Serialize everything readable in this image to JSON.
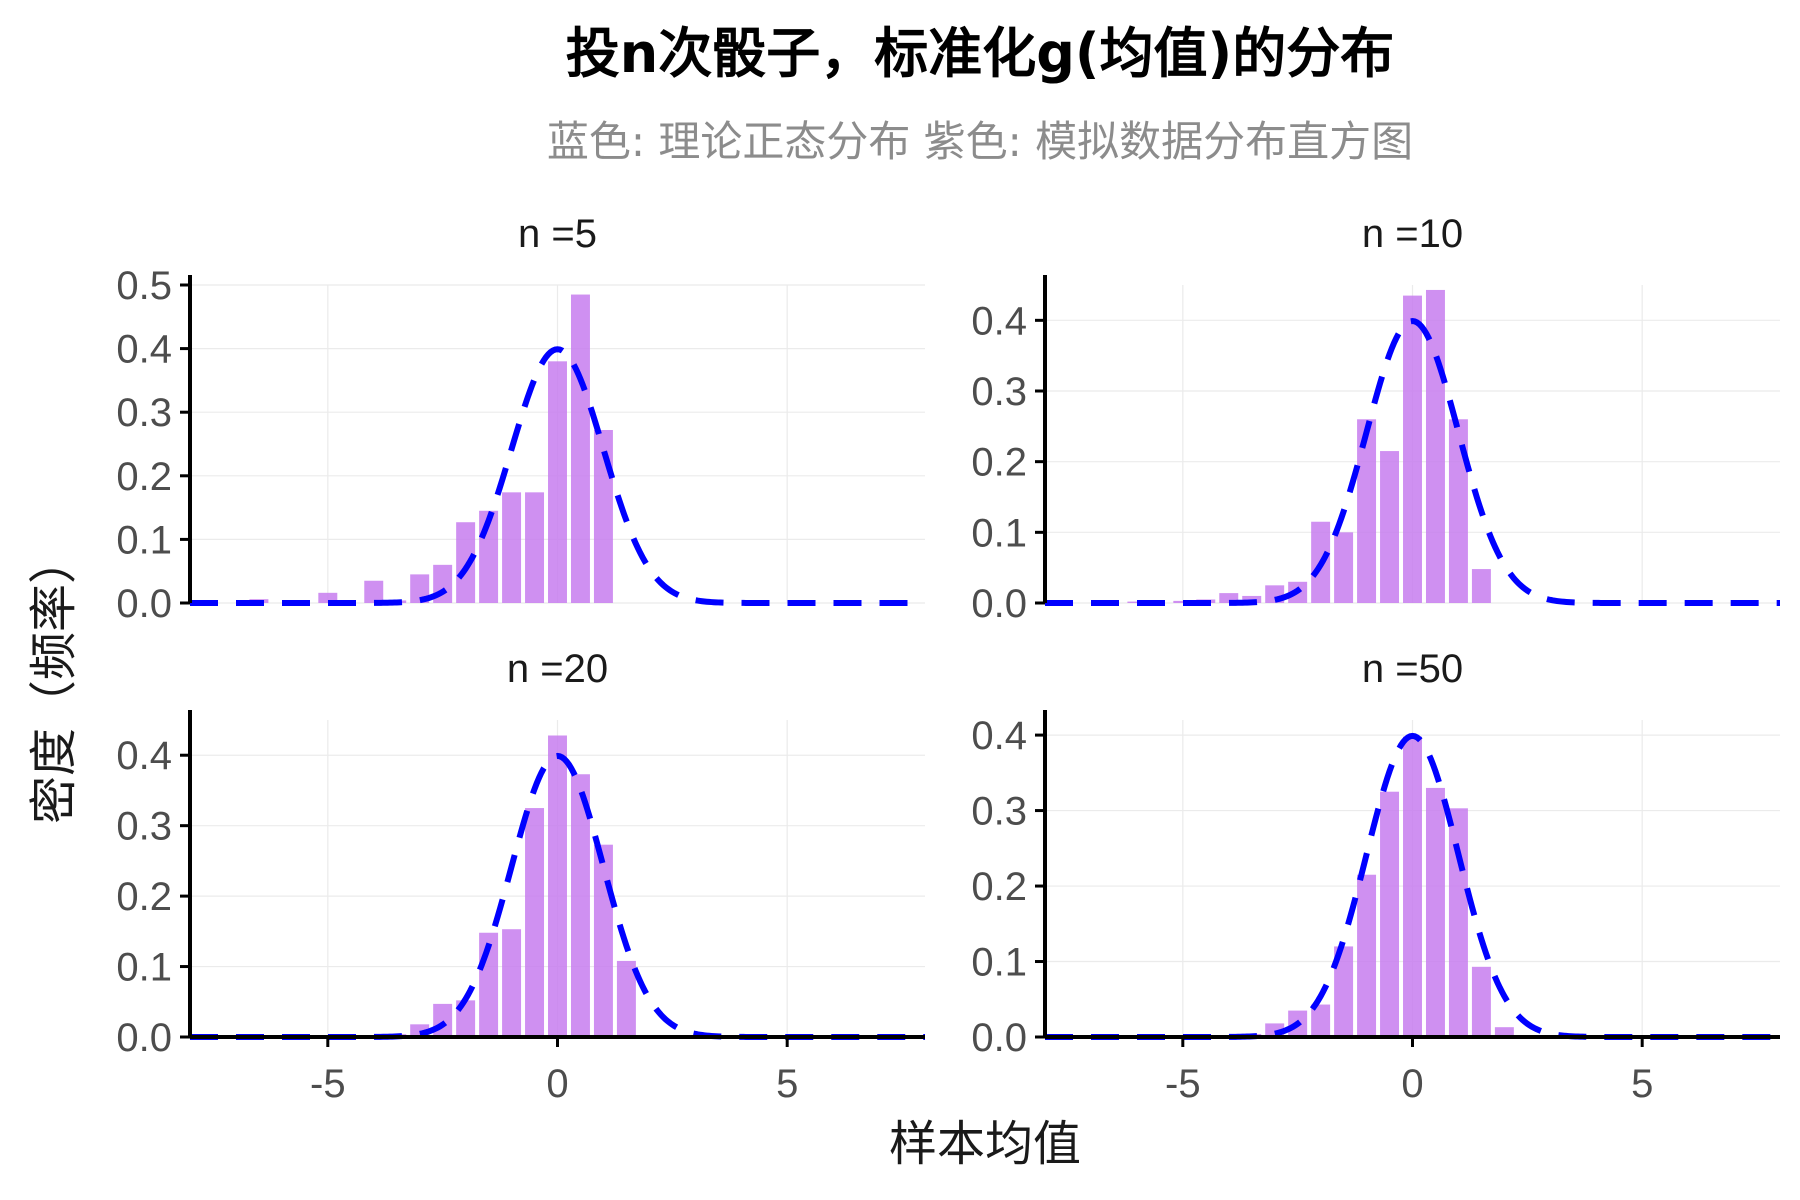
{
  "title": "投n次骰子，标准化g(均值)的分布",
  "subtitle": "蓝色: 理论正态分布   紫色: 模拟数据分布直方图",
  "colors": {
    "bar": "#c77dee",
    "curve": "#0000ff",
    "axis": "#000000",
    "grid": "#ebebeb",
    "subtitle": "#8c8c8c"
  },
  "chart_data": {
    "type": "bar",
    "xlabel": "样本均值",
    "ylabel": "密度（频率）",
    "xlim": [
      -8,
      8
    ],
    "x_ticks": [
      -5,
      0,
      5
    ],
    "x_tick_labels": [
      "-5",
      "0",
      "5"
    ],
    "bin_width": 0.5,
    "grid": true,
    "overlay": {
      "type": "line",
      "distribution": "standard normal density",
      "style": "dashed",
      "color": "#0000ff"
    },
    "panels": [
      {
        "label": "n =5",
        "ylim": [
          0,
          0.5
        ],
        "y_ticks": [
          0,
          0.1,
          0.2,
          0.3,
          0.4,
          0.5
        ],
        "y_tick_labels": [
          "0.0",
          "0.1",
          "0.2",
          "0.3",
          "0.4",
          "0.5"
        ],
        "bins": [
          {
            "x": -6.5,
            "y": 0.006
          },
          {
            "x": -5.0,
            "y": 0.016
          },
          {
            "x": -4.0,
            "y": 0.035
          },
          {
            "x": -3.5,
            "y": 0.004
          },
          {
            "x": -3.0,
            "y": 0.045
          },
          {
            "x": -2.5,
            "y": 0.06
          },
          {
            "x": -2.0,
            "y": 0.127
          },
          {
            "x": -1.5,
            "y": 0.145
          },
          {
            "x": -1.0,
            "y": 0.174
          },
          {
            "x": -0.5,
            "y": 0.174
          },
          {
            "x": 0.0,
            "y": 0.38
          },
          {
            "x": 0.5,
            "y": 0.485
          },
          {
            "x": 1.0,
            "y": 0.272
          }
        ]
      },
      {
        "label": "n =10",
        "ylim": [
          0,
          0.45
        ],
        "y_ticks": [
          0,
          0.1,
          0.2,
          0.3,
          0.4
        ],
        "y_tick_labels": [
          "0.0",
          "0.1",
          "0.2",
          "0.3",
          "0.4"
        ],
        "bins": [
          {
            "x": -6.0,
            "y": 0.002
          },
          {
            "x": -5.0,
            "y": 0.003
          },
          {
            "x": -4.5,
            "y": 0.005
          },
          {
            "x": -4.0,
            "y": 0.014
          },
          {
            "x": -3.5,
            "y": 0.01
          },
          {
            "x": -3.0,
            "y": 0.025
          },
          {
            "x": -2.5,
            "y": 0.03
          },
          {
            "x": -2.0,
            "y": 0.115
          },
          {
            "x": -1.5,
            "y": 0.1
          },
          {
            "x": -1.0,
            "y": 0.26
          },
          {
            "x": -0.5,
            "y": 0.215
          },
          {
            "x": 0.0,
            "y": 0.435
          },
          {
            "x": 0.5,
            "y": 0.443
          },
          {
            "x": 1.0,
            "y": 0.26
          },
          {
            "x": 1.5,
            "y": 0.048
          }
        ]
      },
      {
        "label": "n =20",
        "ylim": [
          0,
          0.45
        ],
        "y_ticks": [
          0,
          0.1,
          0.2,
          0.3,
          0.4
        ],
        "y_tick_labels": [
          "0.0",
          "0.1",
          "0.2",
          "0.3",
          "0.4"
        ],
        "bins": [
          {
            "x": -3.5,
            "y": 0.004
          },
          {
            "x": -3.0,
            "y": 0.018
          },
          {
            "x": -2.5,
            "y": 0.047
          },
          {
            "x": -2.0,
            "y": 0.052
          },
          {
            "x": -1.5,
            "y": 0.148
          },
          {
            "x": -1.0,
            "y": 0.153
          },
          {
            "x": -0.5,
            "y": 0.325
          },
          {
            "x": 0.0,
            "y": 0.428
          },
          {
            "x": 0.5,
            "y": 0.373
          },
          {
            "x": 1.0,
            "y": 0.273
          },
          {
            "x": 1.5,
            "y": 0.108
          }
        ]
      },
      {
        "label": "n =50",
        "ylim": [
          0,
          0.42
        ],
        "y_ticks": [
          0,
          0.1,
          0.2,
          0.3,
          0.4
        ],
        "y_tick_labels": [
          "0.0",
          "0.1",
          "0.2",
          "0.3",
          "0.4"
        ],
        "bins": [
          {
            "x": -3.5,
            "y": 0.004
          },
          {
            "x": -3.0,
            "y": 0.018
          },
          {
            "x": -2.5,
            "y": 0.035
          },
          {
            "x": -2.0,
            "y": 0.043
          },
          {
            "x": -1.5,
            "y": 0.12
          },
          {
            "x": -1.0,
            "y": 0.215
          },
          {
            "x": -0.5,
            "y": 0.325
          },
          {
            "x": 0.0,
            "y": 0.398
          },
          {
            "x": 0.5,
            "y": 0.33
          },
          {
            "x": 1.0,
            "y": 0.303
          },
          {
            "x": 1.5,
            "y": 0.093
          },
          {
            "x": 2.0,
            "y": 0.013
          }
        ]
      }
    ]
  }
}
